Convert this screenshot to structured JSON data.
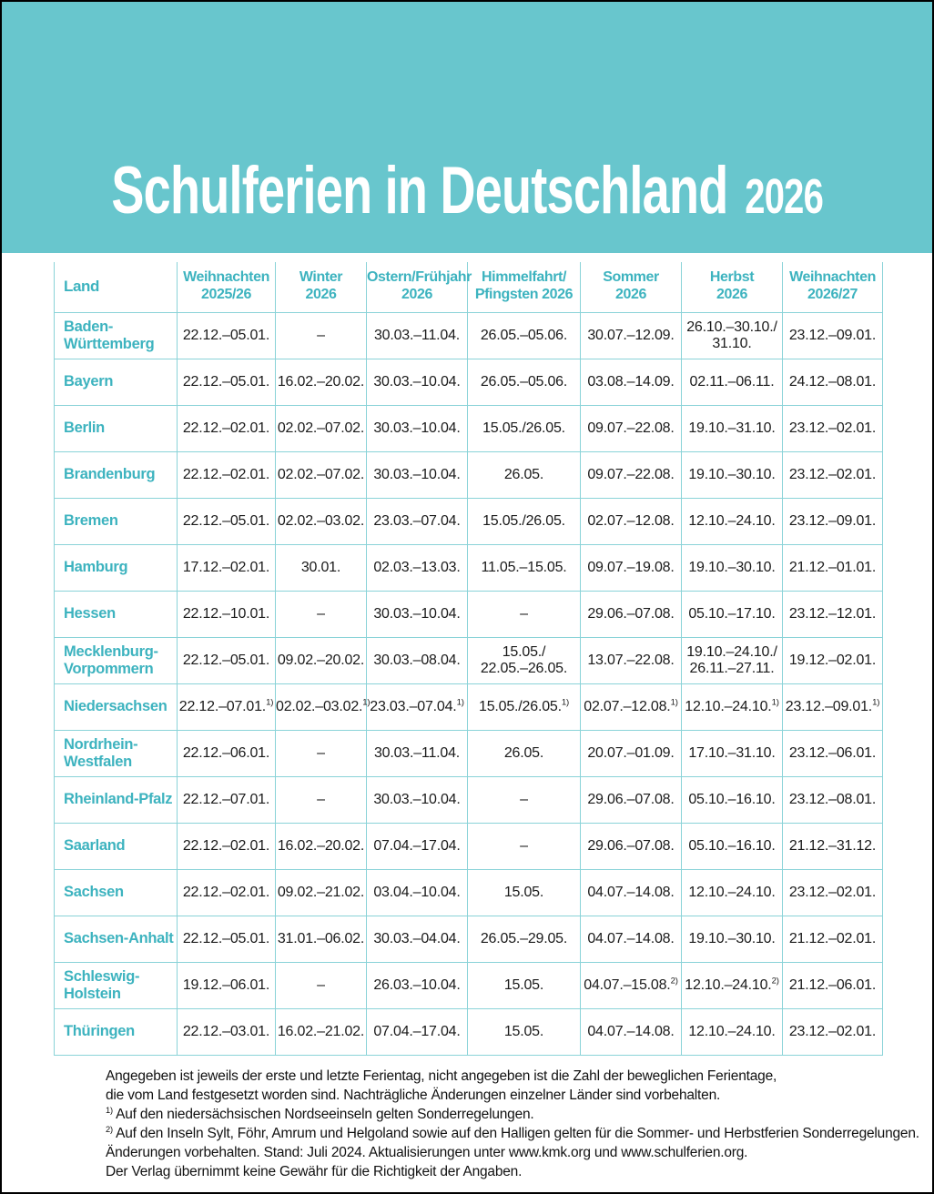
{
  "page": {
    "title_main": "Schulferien in Deutschland",
    "title_year": "2026"
  },
  "colors": {
    "banner_teal": "#68c6cd",
    "accent_teal": "#3db3bf",
    "grid_teal": "#8ad3d8",
    "date_text": "#1a1a1a",
    "title_white": "#ffffff"
  },
  "table": {
    "columns": [
      "Land",
      "Weihnachten\n2025/26",
      "Winter\n2026",
      "Ostern/Frühjahr\n2026",
      "Himmelfahrt/\nPfingsten 2026",
      "Sommer\n2026",
      "Herbst\n2026",
      "Weihnachten\n2026/27"
    ],
    "rows": [
      {
        "land": "Baden-\nWürttemberg",
        "dates": [
          "22.12.–05.01.",
          "–",
          "30.03.–11.04.",
          "26.05.–05.06.",
          "30.07.–12.09.",
          "26.10.–30.10./\n31.10.",
          "23.12.–09.01."
        ]
      },
      {
        "land": "Bayern",
        "dates": [
          "22.12.–05.01.",
          "16.02.–20.02.",
          "30.03.–10.04.",
          "26.05.–05.06.",
          "03.08.–14.09.",
          "02.11.–06.11.",
          "24.12.–08.01."
        ]
      },
      {
        "land": "Berlin",
        "dates": [
          "22.12.–02.01.",
          "02.02.–07.02.",
          "30.03.–10.04.",
          "15.05./26.05.",
          "09.07.–22.08.",
          "19.10.–31.10.",
          "23.12.–02.01."
        ]
      },
      {
        "land": "Brandenburg",
        "dates": [
          "22.12.–02.01.",
          "02.02.–07.02.",
          "30.03.–10.04.",
          "26.05.",
          "09.07.–22.08.",
          "19.10.–30.10.",
          "23.12.–02.01."
        ]
      },
      {
        "land": "Bremen",
        "dates": [
          "22.12.–05.01.",
          "02.02.–03.02.",
          "23.03.–07.04.",
          "15.05./26.05.",
          "02.07.–12.08.",
          "12.10.–24.10.",
          "23.12.–09.01."
        ]
      },
      {
        "land": "Hamburg",
        "dates": [
          "17.12.–02.01.",
          "30.01.",
          "02.03.–13.03.",
          "11.05.–15.05.",
          "09.07.–19.08.",
          "19.10.–30.10.",
          "21.12.–01.01."
        ]
      },
      {
        "land": "Hessen",
        "dates": [
          "22.12.–10.01.",
          "–",
          "30.03.–10.04.",
          "–",
          "29.06.–07.08.",
          "05.10.–17.10.",
          "23.12.–12.01."
        ]
      },
      {
        "land": "Mecklenburg-\nVorpommern",
        "dates": [
          "22.12.–05.01.",
          "09.02.–20.02.",
          "30.03.–08.04.",
          "15.05./\n22.05.–26.05.",
          "13.07.–22.08.",
          "19.10.–24.10./\n26.11.–27.11.",
          "19.12.–02.01."
        ]
      },
      {
        "land": "Niedersachsen",
        "dates": [
          "22.12.–07.01.[[1)]]",
          "02.02.–03.02.[[1)]]",
          "23.03.–07.04.[[1)]]",
          "15.05./26.05.[[1)]]",
          "02.07.–12.08.[[1)]]",
          "12.10.–24.10.[[1)]]",
          "23.12.–09.01.[[1)]]"
        ]
      },
      {
        "land": "Nordrhein-\nWestfalen",
        "dates": [
          "22.12.–06.01.",
          "–",
          "30.03.–11.04.",
          "26.05.",
          "20.07.–01.09.",
          "17.10.–31.10.",
          "23.12.–06.01."
        ]
      },
      {
        "land": "Rheinland-Pfalz",
        "dates": [
          "22.12.–07.01.",
          "–",
          "30.03.–10.04.",
          "–",
          "29.06.–07.08.",
          "05.10.–16.10.",
          "23.12.–08.01."
        ]
      },
      {
        "land": "Saarland",
        "dates": [
          "22.12.–02.01.",
          "16.02.–20.02.",
          "07.04.–17.04.",
          "–",
          "29.06.–07.08.",
          "05.10.–16.10.",
          "21.12.–31.12."
        ]
      },
      {
        "land": "Sachsen",
        "dates": [
          "22.12.–02.01.",
          "09.02.–21.02.",
          "03.04.–10.04.",
          "15.05.",
          "04.07.–14.08.",
          "12.10.–24.10.",
          "23.12.–02.01."
        ]
      },
      {
        "land": "Sachsen-Anhalt",
        "dates": [
          "22.12.–05.01.",
          "31.01.–06.02.",
          "30.03.–04.04.",
          "26.05.–29.05.",
          "04.07.–14.08.",
          "19.10.–30.10.",
          "21.12.–02.01."
        ]
      },
      {
        "land": "Schleswig-\nHolstein",
        "dates": [
          "19.12.–06.01.",
          "–",
          "26.03.–10.04.",
          "15.05.",
          "04.07.–15.08.[[2)]]",
          "12.10.–24.10.[[2)]]",
          "21.12.–06.01."
        ]
      },
      {
        "land": "Thüringen",
        "dates": [
          "22.12.–03.01.",
          "16.02.–21.02.",
          "07.04.–17.04.",
          "15.05.",
          "04.07.–14.08.",
          "12.10.–24.10.",
          "23.12.–02.01."
        ]
      }
    ]
  },
  "footnotes": {
    "lines": [
      "Angegeben ist jeweils der erste und letzte Ferientag, nicht angegeben ist die Zahl der beweglichen Ferientage,",
      "die vom Land festgesetzt worden sind. Nachträgliche Änderungen einzelner Länder sind vorbehalten.",
      "[[1)]] Auf den niedersächsischen Nordseeinseln gelten Sonderregelungen.",
      "[[2)]] Auf den Inseln Sylt, Föhr, Amrum und Helgoland sowie auf den Halligen gelten für die Sommer- und Herbstferien Sonderregelungen.",
      "Änderungen vorbehalten. Stand: Juli 2024. Aktualisierungen unter www.kmk.org und www.schulferien.org.",
      "Der Verlag übernimmt keine Gewähr für die Richtigkeit der Angaben."
    ]
  }
}
